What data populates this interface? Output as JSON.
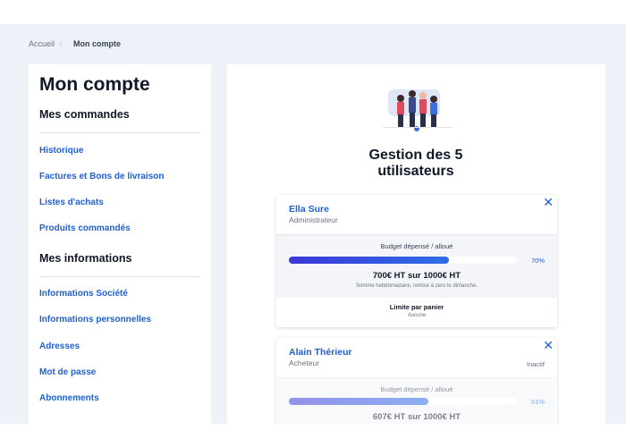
{
  "breadcrumb": {
    "items": [
      "Accueil",
      "Mon compte"
    ]
  },
  "sidebar": {
    "title": "Mon compte",
    "sections": [
      {
        "heading": "Mes commandes",
        "links": [
          "Historique",
          "Factures et Bons de livraison",
          "Listes d'achats",
          "Produits commandés"
        ]
      },
      {
        "heading": "Mes informations",
        "links": [
          "Informations Société",
          "Informations personnelles",
          "Adresses",
          "Mot de passe",
          "Abonnements"
        ]
      }
    ]
  },
  "main": {
    "title": "Gestion des 5 utilisateurs",
    "users": [
      {
        "name": "Ella Sure",
        "role": "Administrateur",
        "budget_label": "Budget dépensé / alloué",
        "progress": {
          "value": 70,
          "label": "70%"
        },
        "amount": "700€ HT sur 1000€ HT",
        "note": "Somme hebdomadaire, remise à zero le dimanche.",
        "limit_title": "Limite par panier",
        "limit_value": "Aucune"
      },
      {
        "name": "Alain Thérieur",
        "role": "Acheteur",
        "status": "Inactif",
        "budget_label": "Budget dépensé / alloué",
        "progress": {
          "value": 61,
          "label": "61%"
        },
        "amount": "607€ HT sur 1000€ HT"
      }
    ]
  }
}
